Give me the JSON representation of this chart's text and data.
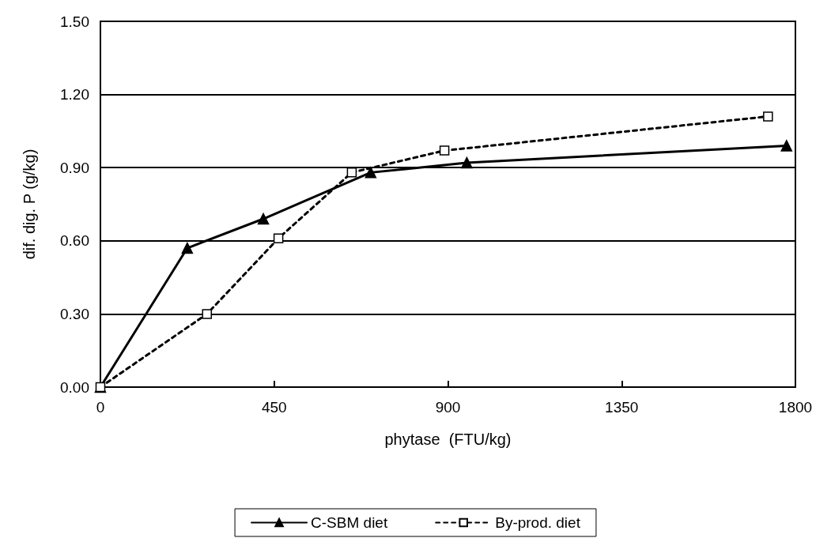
{
  "chart_data": {
    "type": "line",
    "xlabel": "phytase  (FTU/kg)",
    "ylabel": "dif. dig. P (g/kg)",
    "xlim": [
      0,
      1800
    ],
    "xticks": [
      0,
      450,
      900,
      1350,
      1800
    ],
    "ylim": [
      0,
      1.5
    ],
    "yticks": [
      {
        "value": 0,
        "label": "0.00"
      },
      {
        "value": 0.3,
        "label": "0.30"
      },
      {
        "value": 0.6,
        "label": "0.60"
      },
      {
        "value": 0.9,
        "label": "0.90"
      },
      {
        "value": 1.2,
        "label": "1.20"
      },
      {
        "value": 1.5,
        "label": "1.50"
      }
    ],
    "grid": "y",
    "legend": "bottom",
    "series": [
      {
        "name": "C-SBM diet",
        "color": "#000000",
        "marker": "triangle",
        "line_style": "solid",
        "x": [
          0,
          225,
          422,
          700,
          949,
          1777
        ],
        "values": [
          0,
          0.57,
          0.69,
          0.88,
          0.92,
          0.99
        ]
      },
      {
        "name": "By-prod. diet",
        "color": "#000000",
        "marker": "square",
        "line_style": "dashed",
        "x": [
          0,
          276,
          461,
          651,
          891,
          1729
        ],
        "values": [
          0,
          0.3,
          0.61,
          0.88,
          0.97,
          1.11
        ]
      }
    ]
  }
}
